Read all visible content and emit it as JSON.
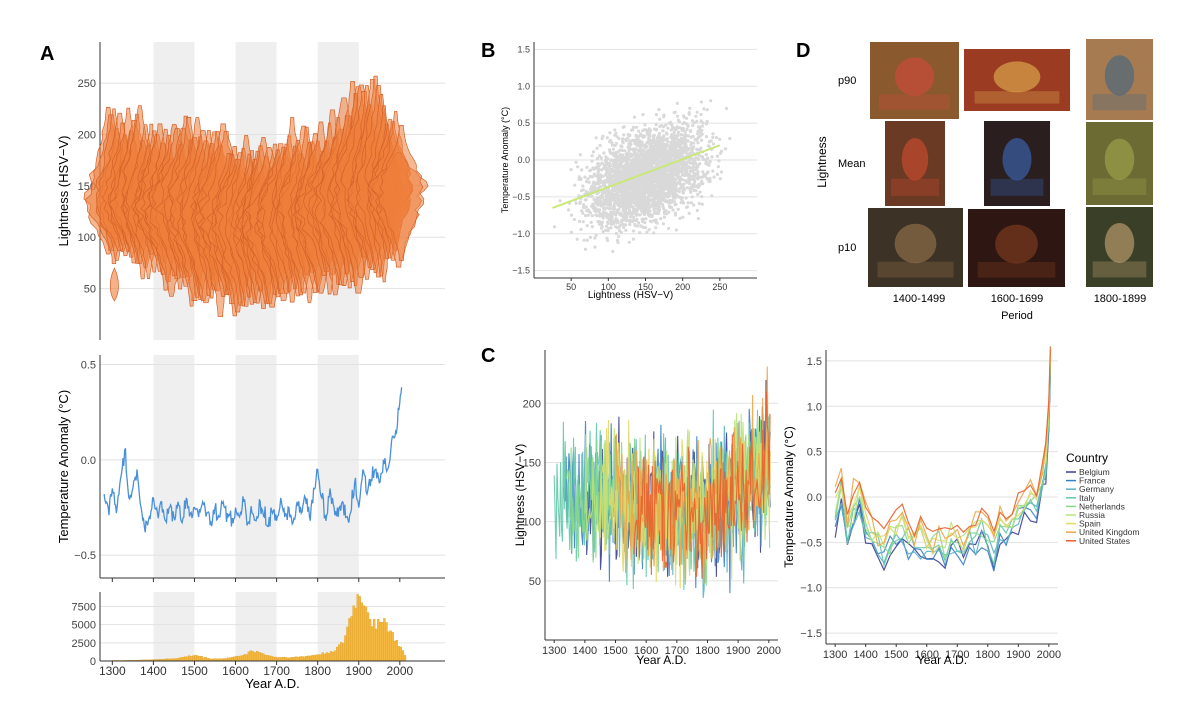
{
  "panels": {
    "A": "A",
    "B": "B",
    "C": "C",
    "D": "D"
  },
  "colors": {
    "violin": "#ee7e3b",
    "violin_edge": "#d4622a",
    "temp_line": "#4a90d9",
    "hist": "#f5b942",
    "hist_edge": "#d99a1e",
    "scatter": "#d9d9d9",
    "fit_line": "#c8e87a",
    "shade": "#efefef",
    "grid": "#e2e2e2",
    "axis": "#333333"
  },
  "chart_data": [
    {
      "id": "A1",
      "type": "violin",
      "ylabel": "Lightness (HSV−V)",
      "yticks": [
        50,
        100,
        150,
        200,
        250
      ],
      "ylim": [
        0,
        290
      ],
      "xlim": [
        1270,
        2110
      ],
      "shaded_periods": [
        [
          1400,
          1500
        ],
        [
          1600,
          1700
        ],
        [
          1800,
          1900
        ]
      ],
      "description_series": {
        "year": [
          1300,
          1350,
          1400,
          1450,
          1500,
          1550,
          1600,
          1650,
          1700,
          1750,
          1800,
          1850,
          1900,
          1950,
          2000
        ],
        "median": [
          130,
          135,
          132,
          128,
          125,
          122,
          118,
          115,
          118,
          122,
          125,
          130,
          135,
          142,
          148
        ],
        "low": [
          85,
          80,
          70,
          55,
          45,
          40,
          35,
          35,
          40,
          45,
          50,
          55,
          60,
          70,
          80
        ],
        "high": [
          225,
          215,
          200,
          195,
          205,
          195,
          190,
          185,
          185,
          190,
          200,
          215,
          240,
          245,
          200
        ]
      }
    },
    {
      "id": "A2",
      "type": "line",
      "ylabel": "Temperature Anomaly (°C)",
      "yticks": [
        -0.5,
        0.0,
        0.5
      ],
      "ytick_labels": [
        "−0.5",
        "0.0",
        "0.5"
      ],
      "ylim": [
        -0.62,
        0.55
      ],
      "xlim": [
        1270,
        2110
      ],
      "shaded_periods": [
        [
          1400,
          1500
        ],
        [
          1600,
          1700
        ],
        [
          1800,
          1900
        ]
      ],
      "x": [
        1280,
        1290,
        1300,
        1310,
        1320,
        1330,
        1340,
        1350,
        1360,
        1370,
        1380,
        1390,
        1400,
        1410,
        1420,
        1430,
        1440,
        1450,
        1460,
        1470,
        1480,
        1490,
        1500,
        1510,
        1520,
        1530,
        1540,
        1550,
        1560,
        1570,
        1580,
        1590,
        1600,
        1610,
        1620,
        1630,
        1640,
        1650,
        1660,
        1670,
        1680,
        1690,
        1700,
        1710,
        1720,
        1730,
        1740,
        1750,
        1760,
        1770,
        1780,
        1790,
        1800,
        1810,
        1820,
        1830,
        1840,
        1850,
        1860,
        1870,
        1880,
        1890,
        1900,
        1910,
        1920,
        1930,
        1940,
        1950,
        1960,
        1970,
        1980,
        1990,
        2000,
        2005
      ],
      "y": [
        -0.18,
        -0.25,
        -0.15,
        -0.28,
        -0.1,
        0.05,
        -0.2,
        -0.15,
        -0.05,
        -0.25,
        -0.38,
        -0.3,
        -0.2,
        -0.28,
        -0.22,
        -0.32,
        -0.25,
        -0.3,
        -0.22,
        -0.33,
        -0.2,
        -0.28,
        -0.25,
        -0.3,
        -0.22,
        -0.28,
        -0.33,
        -0.25,
        -0.3,
        -0.22,
        -0.28,
        -0.35,
        -0.25,
        -0.3,
        -0.22,
        -0.33,
        -0.28,
        -0.32,
        -0.22,
        -0.3,
        -0.35,
        -0.28,
        -0.32,
        -0.2,
        -0.3,
        -0.25,
        -0.33,
        -0.22,
        -0.28,
        -0.2,
        -0.3,
        -0.15,
        -0.05,
        -0.2,
        -0.32,
        -0.15,
        -0.25,
        -0.3,
        -0.22,
        -0.3,
        -0.28,
        -0.12,
        -0.25,
        -0.05,
        -0.18,
        -0.1,
        -0.05,
        -0.12,
        0.0,
        -0.05,
        0.1,
        0.15,
        0.3,
        0.38
      ]
    },
    {
      "id": "A3",
      "type": "bar",
      "xlabel": "Year A.D.",
      "yticks": [
        0,
        2500,
        5000,
        7500
      ],
      "xticks": [
        1300,
        1400,
        1500,
        1600,
        1700,
        1800,
        1900,
        2000
      ],
      "ylim": [
        0,
        9500
      ],
      "xlim": [
        1270,
        2110
      ],
      "shaded_periods": [
        [
          1400,
          1500
        ],
        [
          1600,
          1700
        ],
        [
          1800,
          1900
        ]
      ],
      "x": [
        1280,
        1300,
        1320,
        1340,
        1360,
        1380,
        1400,
        1420,
        1440,
        1460,
        1480,
        1500,
        1520,
        1540,
        1560,
        1580,
        1600,
        1620,
        1640,
        1660,
        1680,
        1700,
        1720,
        1740,
        1760,
        1780,
        1800,
        1820,
        1840,
        1860,
        1870,
        1880,
        1890,
        1900,
        1910,
        1920,
        1930,
        1940,
        1950,
        1960,
        1970,
        1980,
        1990,
        2000,
        2010
      ],
      "values": [
        50,
        60,
        80,
        100,
        120,
        150,
        200,
        250,
        300,
        400,
        600,
        800,
        500,
        300,
        300,
        400,
        600,
        900,
        1400,
        1100,
        700,
        500,
        500,
        500,
        600,
        700,
        900,
        1100,
        1500,
        2500,
        4500,
        6500,
        8000,
        9000,
        8200,
        7000,
        5500,
        5000,
        6000,
        5500,
        4500,
        3500,
        2600,
        1800,
        900
      ]
    },
    {
      "id": "B",
      "type": "scatter",
      "xlabel": "Lightness (HSV−V)",
      "ylabel": "Temperature Anomaly (°C)",
      "xticks": [
        50,
        100,
        150,
        200,
        250
      ],
      "yticks": [
        -1.5,
        -1.0,
        -0.5,
        0.0,
        0.5,
        1.0,
        1.5
      ],
      "ytick_labels": [
        "−1.5",
        "−1.0",
        "−0.5",
        "0.0",
        "0.5",
        "1.0",
        "1.5"
      ],
      "xlim": [
        0,
        300
      ],
      "ylim": [
        -1.6,
        1.6
      ],
      "fit_line": {
        "x": [
          25,
          250
        ],
        "y": [
          -0.65,
          0.2
        ]
      }
    },
    {
      "id": "C1",
      "type": "line",
      "xlabel": "Year A.D.",
      "ylabel": "Lightness (HSV−V)",
      "xticks": [
        1300,
        1400,
        1500,
        1600,
        1700,
        1800,
        1900,
        2000
      ],
      "yticks": [
        50,
        100,
        150,
        200
      ],
      "xlim": [
        1270,
        2030
      ],
      "ylim": [
        0,
        245
      ]
    },
    {
      "id": "C2",
      "type": "line",
      "xlabel": "Year A.D.",
      "ylabel": "Temperature Anomaly (°C)",
      "xticks": [
        1300,
        1400,
        1500,
        1600,
        1700,
        1800,
        1900,
        2000
      ],
      "yticks": [
        -1.5,
        -1.0,
        -0.5,
        0.0,
        0.5,
        1.0,
        1.5
      ],
      "ytick_labels": [
        "−1.5",
        "−1.0",
        "−0.5",
        "0.0",
        "0.5",
        "1.0",
        "1.5"
      ],
      "xlim": [
        1270,
        2030
      ],
      "ylim": [
        -1.62,
        1.62
      ],
      "legend": {
        "title": "Country",
        "position": "right"
      },
      "series": [
        {
          "name": "Belgium",
          "color": "#3b3f8f"
        },
        {
          "name": "France",
          "color": "#3a7ec8"
        },
        {
          "name": "Germany",
          "color": "#5ab0c8"
        },
        {
          "name": "Italy",
          "color": "#62c8a8"
        },
        {
          "name": "Netherlands",
          "color": "#86d88c"
        },
        {
          "name": "Russia",
          "color": "#b8e27a"
        },
        {
          "name": "Spain",
          "color": "#e2d868"
        },
        {
          "name": "United Kingdom",
          "color": "#f0a548"
        },
        {
          "name": "United States",
          "color": "#e8602c"
        }
      ],
      "x": [
        1300,
        1320,
        1340,
        1360,
        1380,
        1400,
        1420,
        1440,
        1460,
        1480,
        1500,
        1520,
        1540,
        1560,
        1580,
        1600,
        1620,
        1640,
        1660,
        1680,
        1700,
        1720,
        1740,
        1760,
        1780,
        1800,
        1820,
        1840,
        1860,
        1880,
        1900,
        1920,
        1940,
        1960,
        1980,
        1990,
        2000,
        2005
      ],
      "base": [
        -0.2,
        0.1,
        -0.4,
        -0.1,
        0.0,
        -0.3,
        -0.4,
        -0.5,
        -0.6,
        -0.45,
        -0.4,
        -0.3,
        -0.45,
        -0.5,
        -0.4,
        -0.5,
        -0.55,
        -0.45,
        -0.6,
        -0.45,
        -0.5,
        -0.55,
        -0.4,
        -0.45,
        -0.35,
        -0.4,
        -0.55,
        -0.3,
        -0.4,
        -0.3,
        -0.2,
        -0.1,
        -0.05,
        -0.1,
        0.2,
        0.4,
        0.9,
        1.5
      ]
    }
  ],
  "panelD": {
    "ylabel": "Lightness",
    "xlabel": "Period",
    "rows": [
      "p90",
      "Mean",
      "p10"
    ],
    "cols": [
      "1400-1499",
      "1600-1699",
      "1800-1899"
    ]
  }
}
